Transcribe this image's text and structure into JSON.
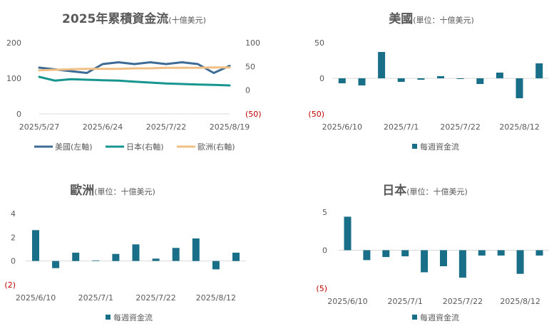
{
  "charts": [
    {
      "id": "c1",
      "title": "2025年累積資金流",
      "title_unit": "(十億美元)",
      "x_ticks": [
        "2025/5/27",
        "2025/6/24",
        "2025/7/22",
        "2025/8/19"
      ],
      "left_axis_ticks": [
        "0",
        "100",
        "200"
      ],
      "right_axis_ticks": [
        "(50)",
        "0",
        "50",
        "100"
      ],
      "legend": [
        "美國(左軸)",
        "日本(右軸)",
        "歐洲(右軸)"
      ]
    },
    {
      "id": "c2",
      "title": "美國",
      "title_unit": "(單位：十億美元)",
      "x_ticks": [
        "2025/6/10",
        "2025/7/1",
        "2025/7/22",
        "2025/8/12"
      ],
      "y_ticks": [
        "(50)",
        "0",
        "50"
      ],
      "legend": [
        "每週資金流"
      ]
    },
    {
      "id": "c3",
      "title": "歐洲",
      "title_unit": "(單位：十億美元)",
      "x_ticks": [
        "2025/6/10",
        "2025/7/1",
        "2025/7/22",
        "2025/8/12"
      ],
      "y_ticks": [
        "(2)",
        "0",
        "2",
        "4"
      ],
      "legend": [
        "每週資金流"
      ]
    },
    {
      "id": "c4",
      "title": "日本",
      "title_unit": "(單位：十億美元)",
      "x_ticks": [
        "2025/6/10",
        "2025/7/1",
        "2025/7/22",
        "2025/8/12"
      ],
      "y_ticks": [
        "(5)",
        "0",
        "5"
      ],
      "legend": [
        "每週資金流"
      ]
    }
  ],
  "chart_data": [
    {
      "type": "line",
      "title": "2025年累積資金流",
      "subtitle": "(十億美元)",
      "x_ticks": [
        "2025/5/27",
        "2025/6/24",
        "2025/7/22",
        "2025/8/19"
      ],
      "ylim_left": [
        0,
        200
      ],
      "ylim_right": [
        -50,
        100
      ],
      "series": [
        {
          "name": "美國(左軸)",
          "axis": "left",
          "color": "#3e6b96",
          "x": [
            "2025/5/27",
            "2025/6/3",
            "2025/6/10",
            "2025/6/17",
            "2025/6/24",
            "2025/7/1",
            "2025/7/8",
            "2025/7/15",
            "2025/7/22",
            "2025/7/29",
            "2025/8/5",
            "2025/8/12",
            "2025/8/19"
          ],
          "values": [
            130,
            125,
            120,
            115,
            140,
            145,
            140,
            145,
            140,
            145,
            140,
            115,
            135
          ]
        },
        {
          "name": "日本(右軸)",
          "axis": "right",
          "color": "#17958f",
          "x": [
            "2025/5/27",
            "2025/6/3",
            "2025/6/10",
            "2025/6/17",
            "2025/6/24",
            "2025/7/1",
            "2025/7/8",
            "2025/7/15",
            "2025/7/22",
            "2025/7/29",
            "2025/8/5",
            "2025/8/12",
            "2025/8/19"
          ],
          "values": [
            28,
            20,
            23,
            22,
            21,
            20,
            18,
            16,
            14,
            13,
            12,
            11,
            10
          ]
        },
        {
          "name": "歐洲(右軸)",
          "axis": "right",
          "color": "#f0bf85",
          "x": [
            "2025/5/27",
            "2025/6/3",
            "2025/6/10",
            "2025/6/17",
            "2025/6/24",
            "2025/7/1",
            "2025/7/8",
            "2025/7/15",
            "2025/7/22",
            "2025/7/29",
            "2025/8/5",
            "2025/8/12",
            "2025/8/19"
          ],
          "values": [
            42,
            43,
            44,
            45,
            45,
            45,
            46,
            46,
            47,
            47,
            47,
            48,
            48
          ]
        }
      ],
      "grid": false,
      "legend_position": "bottom"
    },
    {
      "type": "bar",
      "title": "美國",
      "subtitle": "(單位：十億美元)",
      "x_ticks": [
        "2025/6/10",
        "2025/7/1",
        "2025/7/22",
        "2025/8/12"
      ],
      "ylim": [
        -50,
        50
      ],
      "series": [
        {
          "name": "每週資金流",
          "color": "#1a6f88",
          "values": [
            -7,
            -10,
            37,
            -5,
            -2,
            3,
            -1,
            -8,
            8,
            -28,
            21
          ]
        }
      ],
      "legend_position": "bottom"
    },
    {
      "type": "bar",
      "title": "歐洲",
      "subtitle": "(單位：十億美元)",
      "x_ticks": [
        "2025/6/10",
        "2025/7/1",
        "2025/7/22",
        "2025/8/12"
      ],
      "ylim": [
        -2,
        4
      ],
      "series": [
        {
          "name": "每週資金流",
          "color": "#1a6f88",
          "values": [
            2.6,
            -0.6,
            0.7,
            0.05,
            0.6,
            1.4,
            0.2,
            1.1,
            1.9,
            -0.7,
            0.7
          ]
        }
      ],
      "legend_position": "bottom"
    },
    {
      "type": "bar",
      "title": "日本",
      "subtitle": "(單位：十億美元)",
      "x_ticks": [
        "2025/6/10",
        "2025/7/1",
        "2025/7/22",
        "2025/8/12"
      ],
      "ylim": [
        -5,
        5
      ],
      "series": [
        {
          "name": "每週資金流",
          "color": "#1a6f88",
          "values": [
            4.4,
            -1.3,
            -0.9,
            -0.8,
            -2.9,
            -2.1,
            -3.6,
            -0.7,
            -0.7,
            -3.1,
            -0.7
          ]
        }
      ],
      "legend_position": "bottom"
    }
  ]
}
